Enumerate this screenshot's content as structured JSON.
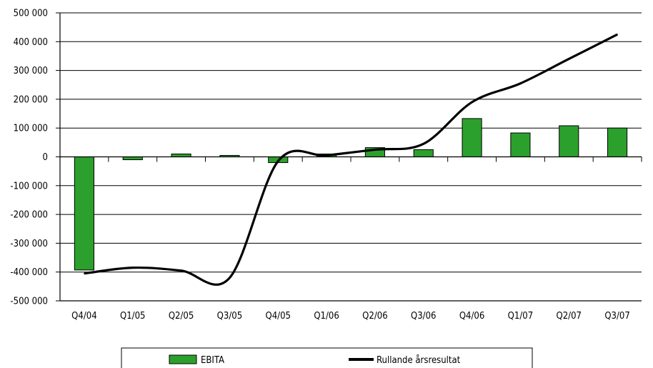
{
  "chart_data": {
    "type": "bar+line",
    "categories": [
      "Q4/04",
      "Q1/05",
      "Q2/05",
      "Q3/05",
      "Q4/05",
      "Q1/06",
      "Q2/06",
      "Q3/06",
      "Q4/06",
      "Q1/07",
      "Q2/07",
      "Q3/07"
    ],
    "series": [
      {
        "name": "EBITA",
        "type": "bar",
        "color": "#2ca02c",
        "values": [
          -393000,
          -10000,
          10000,
          5000,
          -20000,
          10000,
          32000,
          25000,
          133000,
          83000,
          108000,
          100000
        ]
      },
      {
        "name": "Rullande årsresultat",
        "type": "line",
        "color": "#000000",
        "values": [
          -405000,
          -385000,
          -395000,
          -420000,
          -15000,
          5000,
          25000,
          45000,
          190000,
          255000,
          340000,
          425000
        ]
      }
    ],
    "y_ticks": [
      "500 000",
      "400 000",
      "300 000",
      "200 000",
      "100 000",
      "0",
      "-100 000",
      "-200 000",
      "-300 000",
      "-400 000",
      "-500 000"
    ],
    "ylim": [
      -500000,
      500000
    ],
    "grid": "horizontal",
    "legend_position": "bottom"
  }
}
